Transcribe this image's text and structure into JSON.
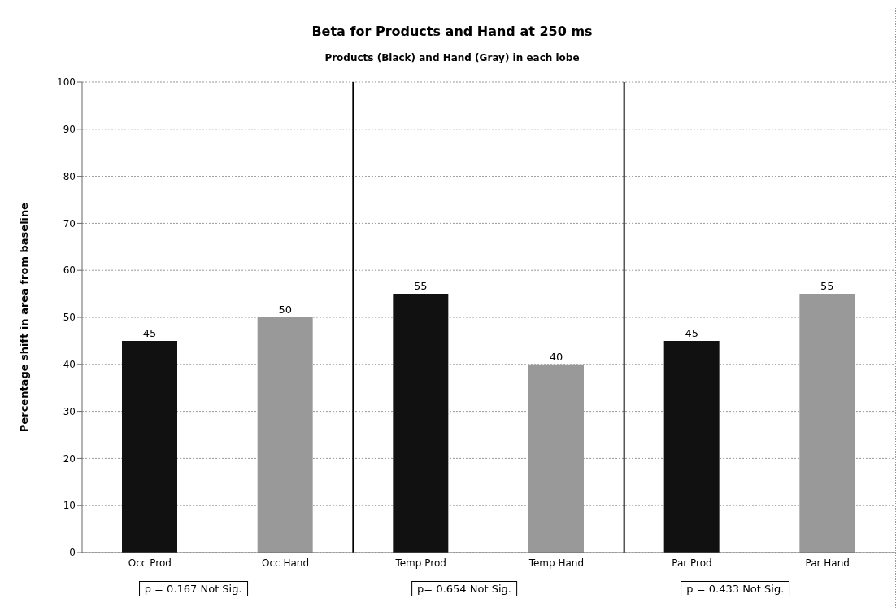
{
  "chart_data": {
    "type": "bar",
    "title": "Beta for Products and Hand at 250 ms",
    "subtitle": "Products (Black) and Hand (Gray) in each lobe",
    "ylabel": "Percentage shift in area from baseline",
    "categories": [
      "Occ Prod",
      "Occ Hand",
      "Temp Prod",
      "Temp Hand",
      "Par Prod",
      "Par Hand"
    ],
    "values": [
      45,
      50,
      55,
      40,
      45,
      55
    ],
    "colors": [
      "#111111",
      "#999999",
      "#111111",
      "#999999",
      "#111111",
      "#999999"
    ],
    "ylim": [
      0,
      100
    ],
    "yticks": [
      0,
      10,
      20,
      30,
      40,
      50,
      60,
      70,
      80,
      90,
      100
    ],
    "grid": "y",
    "data_labels": true,
    "legend": false,
    "annotations": [
      "p = 0.167 Not Sig.",
      "p= 0.654 Not Sig.",
      "p = 0.433 Not Sig."
    ]
  }
}
